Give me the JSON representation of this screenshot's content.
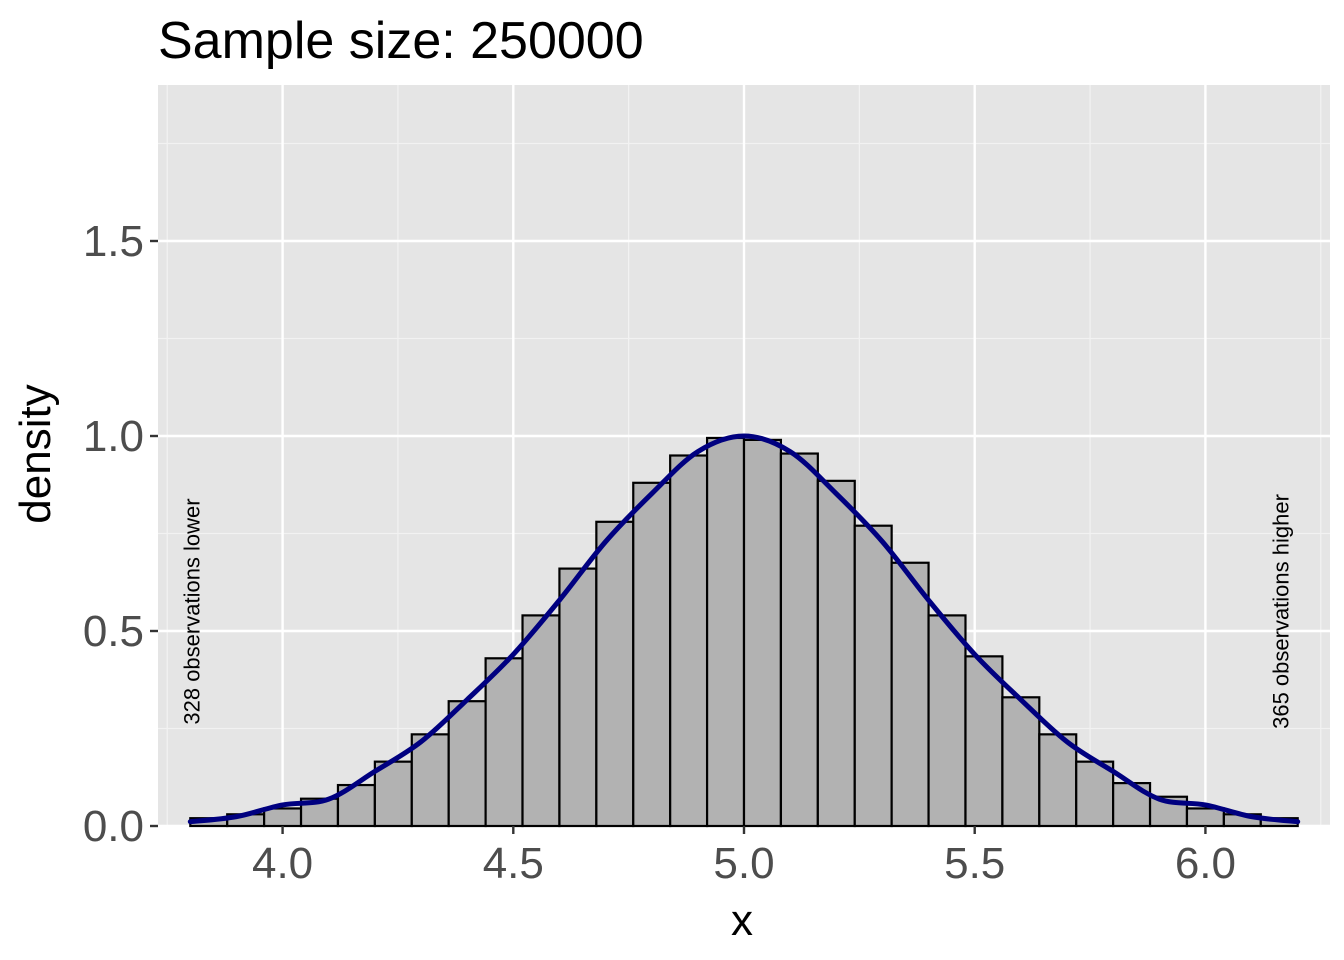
{
  "chart_data": {
    "type": "bar",
    "title": "Sample size: 250000",
    "xlabel": "x",
    "ylabel": "density",
    "xlim": [
      3.73,
      6.27
    ],
    "ylim": [
      0,
      1.9
    ],
    "x_ticks": [
      4.0,
      4.5,
      5.0,
      5.5,
      6.0
    ],
    "x_tick_labels": [
      "4.0",
      "4.5",
      "5.0",
      "5.5",
      "6.0"
    ],
    "y_ticks": [
      0.0,
      0.5,
      1.0,
      1.5
    ],
    "y_tick_labels": [
      "0.0",
      "0.5",
      "1.0",
      "1.5"
    ],
    "grid": true,
    "bin_width": 0.08,
    "bins": {
      "x": [
        3.84,
        3.92,
        4.0,
        4.08,
        4.16,
        4.24,
        4.32,
        4.4,
        4.48,
        4.56,
        4.64,
        4.72,
        4.8,
        4.88,
        4.96,
        5.04,
        5.12,
        5.2,
        5.28,
        5.36,
        5.44,
        5.52,
        5.6,
        5.68,
        5.76,
        5.84,
        5.92,
        6.0,
        6.08,
        6.16
      ],
      "density": [
        0.02,
        0.03,
        0.045,
        0.07,
        0.105,
        0.165,
        0.235,
        0.32,
        0.43,
        0.54,
        0.66,
        0.78,
        0.88,
        0.95,
        0.995,
        0.99,
        0.955,
        0.885,
        0.77,
        0.675,
        0.54,
        0.435,
        0.33,
        0.235,
        0.165,
        0.11,
        0.075,
        0.045,
        0.03,
        0.02
      ]
    },
    "series": [
      {
        "type": "line",
        "color": "#000080",
        "x": [
          3.8,
          3.9,
          4.0,
          4.1,
          4.2,
          4.3,
          4.4,
          4.5,
          4.6,
          4.7,
          4.8,
          4.9,
          5.0,
          5.1,
          5.2,
          5.3,
          5.4,
          5.5,
          5.6,
          5.7,
          5.8,
          5.9,
          6.0,
          6.1,
          6.2
        ],
        "y": [
          0.011,
          0.024,
          0.054,
          0.069,
          0.14,
          0.216,
          0.324,
          0.44,
          0.579,
          0.729,
          0.852,
          0.96,
          1.0,
          0.96,
          0.852,
          0.729,
          0.579,
          0.44,
          0.324,
          0.216,
          0.14,
          0.069,
          0.054,
          0.024,
          0.011
        ]
      }
    ],
    "bar_fill": "#b2b2b2",
    "bar_stroke": "#000000",
    "panel_background": "#e5e5e5",
    "annotations": [
      {
        "text": "328 observations lower",
        "x": 3.82,
        "y": 0.55
      },
      {
        "text": "365 observations higher",
        "x": 6.18,
        "y": 0.55
      }
    ]
  }
}
